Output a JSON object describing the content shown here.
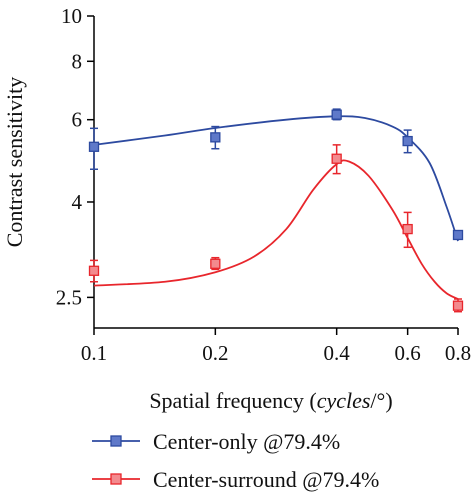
{
  "chart_data": {
    "type": "line",
    "xlabel": {
      "prefix": "Spatial frequency (",
      "italic": "cycles",
      "suffix": "/°)"
    },
    "ylabel": "Contrast sensitivity",
    "xscale": "log",
    "yscale": "log",
    "xlim": [
      0.1,
      0.8
    ],
    "ylim": [
      2.15,
      10
    ],
    "xticks": [
      0.1,
      0.2,
      0.4,
      0.6,
      0.8
    ],
    "xtick_labels": [
      "0.1",
      "0.2",
      "0.4",
      "0.6",
      "0.8"
    ],
    "yticks": [
      2.5,
      4,
      6,
      8,
      10
    ],
    "ytick_labels": [
      "2.5",
      "4",
      "6",
      "8",
      "10"
    ],
    "grid": false,
    "legend_position": "bottom",
    "series": [
      {
        "name": "Center-only @79.4%",
        "color": "#2d4aa0",
        "marker_fill": "#5f79c9",
        "points": [
          {
            "x": 0.1,
            "y": 5.25,
            "err_low": 4.7,
            "err_high": 5.75
          },
          {
            "x": 0.2,
            "y": 5.5,
            "err_low": 5.2,
            "err_high": 5.8
          },
          {
            "x": 0.4,
            "y": 6.15,
            "err_low": 6.0,
            "err_high": 6.32
          },
          {
            "x": 0.6,
            "y": 5.4,
            "err_low": 5.1,
            "err_high": 5.7
          },
          {
            "x": 0.8,
            "y": 3.4,
            "err_low": 3.4,
            "err_high": 3.4
          }
        ],
        "curve": [
          [
            0.1,
            5.3
          ],
          [
            0.15,
            5.55
          ],
          [
            0.2,
            5.76
          ],
          [
            0.3,
            6.0
          ],
          [
            0.4,
            6.1
          ],
          [
            0.47,
            6.05
          ],
          [
            0.55,
            5.8
          ],
          [
            0.6,
            5.5
          ],
          [
            0.68,
            4.85
          ],
          [
            0.75,
            3.9
          ],
          [
            0.8,
            3.3
          ]
        ]
      },
      {
        "name": "Center-surround @79.4%",
        "color": "#e8262c",
        "marker_fill": "#f38a8e",
        "points": [
          {
            "x": 0.1,
            "y": 2.85,
            "err_low": 2.7,
            "err_high": 3.0
          },
          {
            "x": 0.2,
            "y": 2.95,
            "err_low": 2.87,
            "err_high": 3.04
          },
          {
            "x": 0.4,
            "y": 4.95,
            "err_low": 4.6,
            "err_high": 5.3
          },
          {
            "x": 0.6,
            "y": 3.5,
            "err_low": 3.2,
            "err_high": 3.8
          },
          {
            "x": 0.8,
            "y": 2.4,
            "err_low": 2.33,
            "err_high": 2.48
          }
        ],
        "curve": [
          [
            0.1,
            2.65
          ],
          [
            0.15,
            2.7
          ],
          [
            0.2,
            2.83
          ],
          [
            0.25,
            3.06
          ],
          [
            0.3,
            3.5
          ],
          [
            0.35,
            4.25
          ],
          [
            0.4,
            4.82
          ],
          [
            0.43,
            4.88
          ],
          [
            0.48,
            4.55
          ],
          [
            0.55,
            3.85
          ],
          [
            0.6,
            3.35
          ],
          [
            0.65,
            2.95
          ],
          [
            0.7,
            2.7
          ],
          [
            0.75,
            2.55
          ],
          [
            0.8,
            2.48
          ]
        ]
      }
    ]
  }
}
